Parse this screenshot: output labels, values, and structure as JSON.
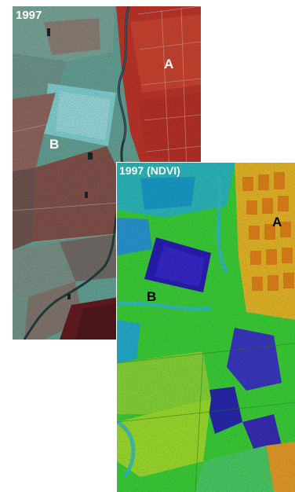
{
  "false_color_panel": {
    "year_label": "1997",
    "region_a_label": "A",
    "region_b_label": "B"
  },
  "ndvi_panel": {
    "title_label": "1997 (NDVI)",
    "region_a_label": "A",
    "region_b_label": "B"
  }
}
